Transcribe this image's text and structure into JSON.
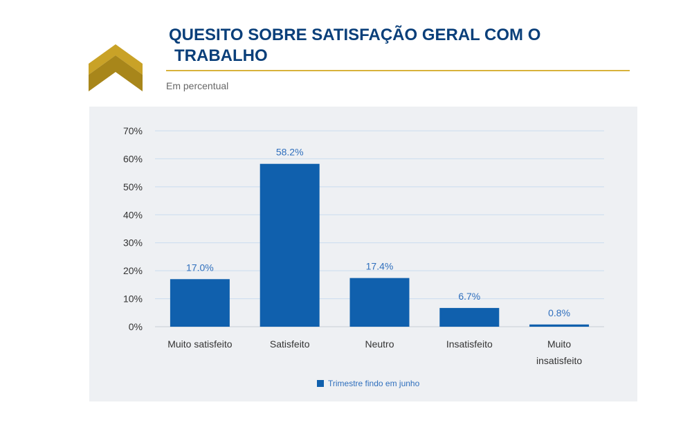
{
  "header": {
    "title_line1": "QUESITO SOBRE SATISFAÇÃO GERAL COM O",
    "title_line2": "TRABALHO",
    "subtitle": "Em percentual"
  },
  "logo": {
    "icon": "chevron-up-icon",
    "color_top": "#c9a227",
    "color_bottom": "#a8861a"
  },
  "colors": {
    "bar": "#1060ad",
    "grid": "#c9dcef",
    "data_label": "#2f6fbd",
    "axis_text": "#333333",
    "panel": "#eef0f3"
  },
  "chart_data": {
    "type": "bar",
    "categories": [
      [
        "Muito satisfeito"
      ],
      [
        "Satisfeito"
      ],
      [
        "Neutro"
      ],
      [
        "Insatisfeito"
      ],
      [
        "Muito",
        "insatisfeito"
      ]
    ],
    "series": [
      {
        "name": "Trimestre findo em junho",
        "values": [
          17.0,
          58.2,
          17.4,
          6.7,
          0.8
        ]
      }
    ],
    "data_labels": [
      "17.0%",
      "58.2%",
      "17.4%",
      "6.7%",
      "0.8%"
    ],
    "y_ticks": [
      "0%",
      "10%",
      "20%",
      "30%",
      "40%",
      "50%",
      "60%",
      "70%"
    ],
    "ylim": [
      0,
      70
    ],
    "grid": true,
    "legend_position": "bottom"
  }
}
